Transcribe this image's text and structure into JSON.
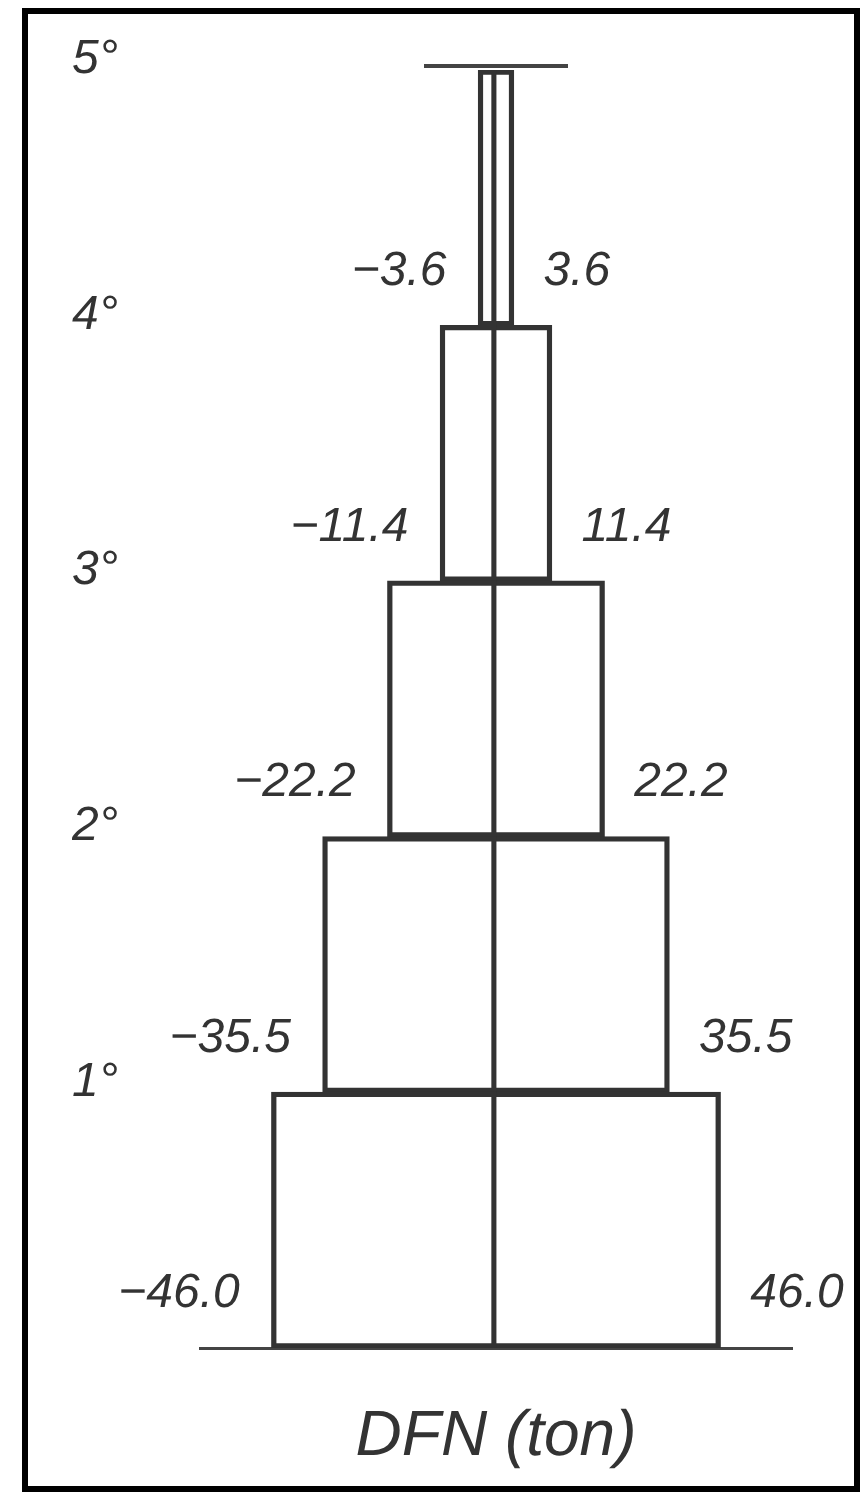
{
  "chart_data": {
    "type": "bar",
    "orientation": "horizontal",
    "stacked": true,
    "xlabel": "DFN (ton)",
    "categories": [
      "5°",
      "4°",
      "3°",
      "2°",
      "1°"
    ],
    "series": [
      {
        "color": "#333333",
        "values": [
          -3.6,
          -11.4,
          -22.2,
          -35.5,
          -46.0
        ],
        "value_labels": [
          "−3.6",
          "−11.4",
          "−22.2",
          "−35.5",
          "−46.0"
        ]
      },
      {
        "color": "#333333",
        "values": [
          3.6,
          11.4,
          22.2,
          35.5,
          46.0
        ],
        "value_labels": [
          "3.6",
          "11.4",
          "22.2",
          "35.5",
          "46.0"
        ]
      }
    ],
    "tick_labels": "y",
    "grid": false,
    "legend": false
  }
}
